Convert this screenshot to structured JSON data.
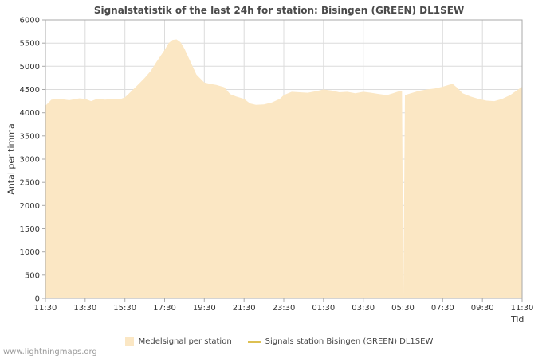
{
  "page": {
    "title": "Signalstatistik of the last 24h for station: Bisingen (GREEN) DL1SEW",
    "watermark": "www.lightningmaps.org"
  },
  "axes": {
    "ylabel": "Antal per timma",
    "xlabel": "Tid"
  },
  "legend": {
    "items": [
      {
        "label": "Medelsignal per station",
        "swatch": "area",
        "color": "#fbe7c4"
      },
      {
        "label": "Signals station Bisingen (GREEN) DL1SEW",
        "swatch": "line",
        "color": "#ddc052"
      }
    ]
  },
  "colors": {
    "area_fill": "#fbe7c4",
    "signal_line": "#ddc052",
    "grid": "#dcdcdc",
    "plot_border": "#a8a8a8",
    "tick_text": "#333333"
  },
  "chart_data": {
    "type": "area",
    "title": "Signalstatistik of the last 24h for station: Bisingen (GREEN) DL1SEW",
    "xlabel": "Tid",
    "ylabel": "Antal per timma",
    "ylim": [
      0,
      6000
    ],
    "ytick_step": 500,
    "x_hours_span": 24,
    "x_tick_labels": [
      "11:30",
      "13:30",
      "15:30",
      "17:30",
      "19:30",
      "21:30",
      "23:30",
      "01:30",
      "03:30",
      "05:30",
      "07:30",
      "09:30",
      "11:30"
    ],
    "grid": true,
    "legend_position": "bottom",
    "series": [
      {
        "name": "Medelsignal per station",
        "type": "area",
        "color": "#fbe7c4",
        "x": [
          0,
          0.3,
          0.7,
          1.2,
          1.7,
          2,
          2.3,
          2.6,
          3,
          3.4,
          3.8,
          4,
          4.3,
          4.7,
          5,
          5.3,
          5.6,
          6,
          6.2,
          6.4,
          6.6,
          6.8,
          7,
          7.3,
          7.6,
          8,
          8.3,
          8.6,
          9,
          9.3,
          9.6,
          10,
          10.3,
          10.6,
          11,
          11.4,
          11.8,
          12,
          12.4,
          12.8,
          13.2,
          13.6,
          14,
          14.4,
          14.8,
          15.2,
          15.6,
          16,
          16.4,
          16.8,
          17.2,
          17.5,
          17.8,
          17.95,
          18.02,
          18.1,
          18.4,
          18.8,
          19.2,
          19.6,
          20,
          20.3,
          20.5,
          20.7,
          21,
          21.4,
          21.8,
          22.2,
          22.6,
          23,
          23.4,
          23.7,
          24
        ],
        "values": [
          4150,
          4280,
          4300,
          4270,
          4310,
          4300,
          4250,
          4300,
          4280,
          4300,
          4300,
          4330,
          4450,
          4620,
          4750,
          4900,
          5100,
          5350,
          5500,
          5570,
          5580,
          5520,
          5380,
          5100,
          4820,
          4650,
          4620,
          4600,
          4550,
          4400,
          4350,
          4300,
          4200,
          4170,
          4180,
          4220,
          4300,
          4380,
          4450,
          4440,
          4430,
          4460,
          4500,
          4480,
          4440,
          4450,
          4420,
          4450,
          4430,
          4400,
          4380,
          4420,
          4460,
          4470,
          60,
          4380,
          4420,
          4470,
          4500,
          4520,
          4560,
          4600,
          4620,
          4550,
          4420,
          4350,
          4300,
          4260,
          4250,
          4300,
          4380,
          4470,
          4560
        ]
      },
      {
        "name": "Signals station Bisingen (GREEN) DL1SEW",
        "type": "line",
        "color": "#ddc052",
        "x": [],
        "values": []
      }
    ]
  }
}
